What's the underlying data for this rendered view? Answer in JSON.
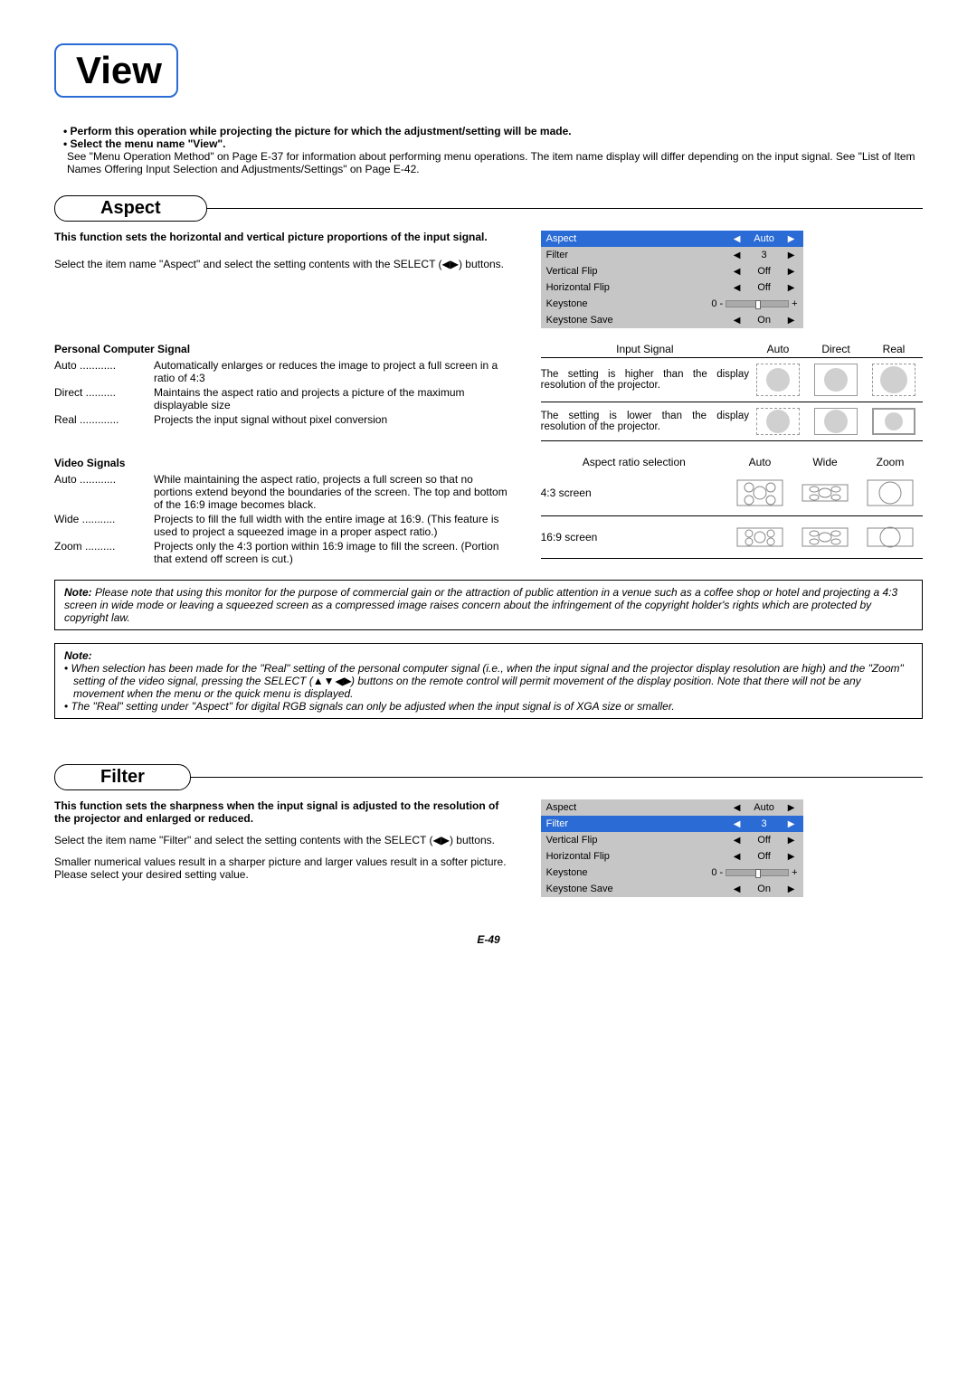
{
  "page": {
    "title": "View",
    "number": "E-49"
  },
  "intro": {
    "bullet1": "Perform this operation while projecting the picture for which the adjustment/setting will be made.",
    "bullet2": "Select the menu name \"View\".",
    "desc": "See \"Menu Operation Method\" on Page E-37 for information about performing menu operations. The item name display will differ depending on the input signal. See \"List of Item Names Offering Input Selection and Adjustments/Settings\" on Page E-42."
  },
  "aspect": {
    "heading": "Aspect",
    "lead": "This function sets the horizontal and vertical picture proportions of the input signal.",
    "instruction": "Select the item name \"Aspect\" and select the setting contents with the SELECT (◀▶) buttons.",
    "pc_signal_title": "Personal Computer Signal",
    "pc_defs": [
      {
        "term": "Auto",
        "dots": "............",
        "desc": "Automatically enlarges or reduces the image to project a full screen in a ratio of 4:3"
      },
      {
        "term": "Direct",
        "dots": "..........",
        "desc": "Maintains the aspect ratio and projects a picture of the maximum displayable size"
      },
      {
        "term": "Real",
        "dots": ".............",
        "desc": "Projects the input signal without pixel conversion"
      }
    ],
    "video_title": "Video Signals",
    "video_defs": [
      {
        "term": "Auto",
        "dots": "............",
        "desc": "While maintaining the aspect ratio, projects a full screen so that no portions extend beyond the boundaries of the screen. The top and bottom of the 16:9 image becomes black."
      },
      {
        "term": "Wide",
        "dots": "...........",
        "desc": "Projects to fill the full width with the entire image at 16:9. (This feature is used to project a squeezed image in a proper aspect ratio.)"
      },
      {
        "term": "Zoom",
        "dots": "..........",
        "desc": "Projects only the 4:3 portion within 16:9 image to fill the screen. (Portion that extend off screen is cut.)"
      }
    ],
    "menu": {
      "rows": [
        {
          "label": "Aspect",
          "val": "Auto",
          "hl": true
        },
        {
          "label": "Filter",
          "val": "3",
          "hl": false
        },
        {
          "label": "Vertical Flip",
          "val": "Off",
          "hl": false
        },
        {
          "label": "Horizontal Flip",
          "val": "Off",
          "hl": false
        },
        {
          "label": "Keystone",
          "val": "0",
          "slider": true,
          "hl": false
        },
        {
          "label": "Keystone Save",
          "val": "On",
          "hl": false
        }
      ]
    },
    "input_signal": {
      "header": "Input Signal",
      "cols": [
        "Auto",
        "Direct",
        "Real"
      ],
      "rows": [
        {
          "label": "The setting is higher than the display resolution of the projector."
        },
        {
          "label": "The setting is lower than the display resolution of the projector."
        }
      ]
    },
    "aspect_sel": {
      "header": "Aspect ratio selection",
      "cols": [
        "Auto",
        "Wide",
        "Zoom"
      ],
      "rows": [
        {
          "label": "4:3 screen"
        },
        {
          "label": "16:9 screen"
        }
      ]
    },
    "note1": {
      "title": "Note:",
      "text": "Please note that using this monitor for the purpose of commercial gain or the attraction of public attention in a venue such as a coffee shop or hotel and projecting a 4:3 screen in wide mode or leaving a squeezed screen as a compressed image raises concern about the infringement of the copyright holder's rights which are protected by copyright law."
    },
    "note2": {
      "title": "Note:",
      "items": [
        "When selection has been made for the \"Real\" setting of the personal computer signal (i.e., when the input signal and the projector display resolution are high) and the \"Zoom\" setting of the video signal, pressing the SELECT (▲▼◀▶) buttons on the remote control will permit movement of the display position. Note that there will not be any movement when the menu or the quick menu is displayed.",
        "The \"Real\" setting under \"Aspect\" for digital RGB signals can only be adjusted when the input signal is of XGA size or smaller."
      ]
    }
  },
  "filter": {
    "heading": "Filter",
    "lead": "This function sets the sharpness when the input signal is adjusted to the resolution of the projector and enlarged or reduced.",
    "instruction": "Select the item name \"Filter\" and select the setting contents with the SELECT (◀▶) buttons.",
    "desc": "Smaller numerical values result in a sharper picture and larger values result in a softer picture. Please select your desired setting value.",
    "menu": {
      "rows": [
        {
          "label": "Aspect",
          "val": "Auto",
          "hl": false
        },
        {
          "label": "Filter",
          "val": "3",
          "hl": true
        },
        {
          "label": "Vertical Flip",
          "val": "Off",
          "hl": false
        },
        {
          "label": "Horizontal Flip",
          "val": "Off",
          "hl": false
        },
        {
          "label": "Keystone",
          "val": "0",
          "slider": true,
          "hl": false
        },
        {
          "label": "Keystone Save",
          "val": "On",
          "hl": false
        }
      ]
    }
  }
}
